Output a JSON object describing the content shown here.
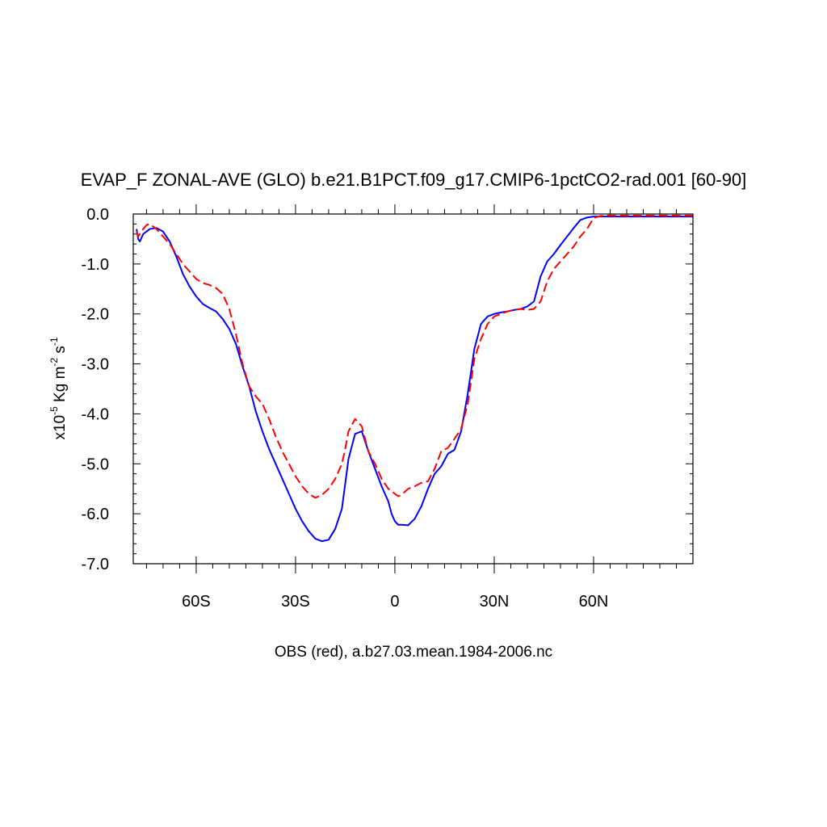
{
  "chart_data": {
    "type": "line",
    "title": "EVAP_F ZONAL-AVE (GLO) b.e21.B1PCT.f09_g17.CMIP6-1pctCO2-rad.001 [60-90]",
    "xlabel": "OBS (red), a.b27.03.mean.1984-2006.nc",
    "ylabel": {
      "prefix": "x10",
      "exp1": "-5",
      "unit": " Kg m",
      "exp2": "-2",
      "unit2": " s",
      "exp3": "-1"
    },
    "xlim": [
      -79,
      90
    ],
    "ylim": [
      -7.0,
      0.0
    ],
    "x_ticks": [
      {
        "value": -60,
        "label": "60S"
      },
      {
        "value": -30,
        "label": "30S"
      },
      {
        "value": 0,
        "label": "0"
      },
      {
        "value": 30,
        "label": "30N"
      },
      {
        "value": 60,
        "label": "60N"
      }
    ],
    "y_ticks": [
      {
        "value": 0.0,
        "label": "0.0"
      },
      {
        "value": -1.0,
        "label": "-1.0"
      },
      {
        "value": -2.0,
        "label": "-2.0"
      },
      {
        "value": -3.0,
        "label": "-3.0"
      },
      {
        "value": -4.0,
        "label": "-4.0"
      },
      {
        "value": -5.0,
        "label": "-5.0"
      },
      {
        "value": -6.0,
        "label": "-6.0"
      },
      {
        "value": -7.0,
        "label": "-7.0"
      }
    ],
    "grid": false,
    "series": [
      {
        "color": "#0000ff",
        "dash": "solid",
        "x": [
          -78,
          -77.5,
          -77,
          -76,
          -75,
          -74,
          -72,
          -70,
          -68,
          -66,
          -64,
          -62,
          -60,
          -58,
          -56,
          -54,
          -52,
          -50,
          -48,
          -46,
          -44,
          -42,
          -40,
          -38,
          -36,
          -34,
          -32,
          -30,
          -28,
          -26,
          -24,
          -22,
          -20,
          -18,
          -16,
          -15,
          -14,
          -12,
          -10,
          -8,
          -6,
          -4,
          -2,
          -1,
          0,
          1,
          2,
          4,
          6,
          8,
          10,
          12,
          14,
          16,
          18,
          20,
          22,
          24,
          26,
          28,
          30,
          32,
          34,
          36,
          38,
          40,
          42,
          44,
          46,
          48,
          50,
          52,
          54,
          56,
          58,
          60,
          62,
          64,
          66,
          68,
          70,
          72,
          74,
          76,
          78,
          80,
          82,
          84,
          86,
          88,
          90
        ],
        "y": [
          -0.3,
          -0.5,
          -0.55,
          -0.4,
          -0.35,
          -0.3,
          -0.28,
          -0.35,
          -0.55,
          -0.85,
          -1.2,
          -1.45,
          -1.65,
          -1.8,
          -1.88,
          -1.95,
          -2.1,
          -2.3,
          -2.6,
          -3.05,
          -3.45,
          -3.95,
          -4.35,
          -4.7,
          -5.0,
          -5.3,
          -5.6,
          -5.9,
          -6.15,
          -6.35,
          -6.5,
          -6.55,
          -6.52,
          -6.3,
          -5.9,
          -5.4,
          -4.9,
          -4.4,
          -4.35,
          -4.75,
          -5.1,
          -5.45,
          -5.75,
          -6.0,
          -6.15,
          -6.22,
          -6.22,
          -6.23,
          -6.1,
          -5.85,
          -5.5,
          -5.2,
          -5.05,
          -4.8,
          -4.72,
          -4.35,
          -3.6,
          -2.7,
          -2.2,
          -2.05,
          -2.0,
          -1.97,
          -1.95,
          -1.92,
          -1.9,
          -1.85,
          -1.75,
          -1.25,
          -0.95,
          -0.8,
          -0.62,
          -0.45,
          -0.28,
          -0.12,
          -0.07,
          -0.05,
          -0.05,
          -0.05,
          -0.05,
          -0.05,
          -0.05,
          -0.05,
          -0.05,
          -0.05,
          -0.05,
          -0.05,
          -0.05,
          -0.05,
          -0.05,
          -0.05,
          -0.05
        ]
      },
      {
        "color": "#ff0000",
        "dash": "dashed",
        "x": [
          -78,
          -77.5,
          -77,
          -76,
          -75,
          -74,
          -72,
          -70,
          -68,
          -66,
          -64,
          -62,
          -60,
          -58,
          -56,
          -54,
          -52,
          -50,
          -48,
          -46,
          -44,
          -42,
          -40,
          -38,
          -36,
          -34,
          -32,
          -30,
          -28,
          -26,
          -24,
          -22,
          -20,
          -18,
          -16,
          -15,
          -14,
          -12,
          -10,
          -8,
          -6,
          -4,
          -2,
          -1,
          0,
          1,
          2,
          4,
          6,
          8,
          10,
          12,
          14,
          16,
          18,
          20,
          22,
          24,
          26,
          28,
          30,
          32,
          34,
          36,
          38,
          40,
          42,
          44,
          46,
          48,
          50,
          52,
          54,
          56,
          58,
          60,
          62,
          64,
          66,
          68,
          70,
          72,
          74,
          76,
          78,
          80,
          82,
          84,
          86,
          88,
          90
        ],
        "y": [
          -0.35,
          -0.45,
          -0.4,
          -0.3,
          -0.22,
          -0.2,
          -0.3,
          -0.45,
          -0.6,
          -0.8,
          -1.0,
          -1.15,
          -1.3,
          -1.38,
          -1.42,
          -1.48,
          -1.6,
          -1.9,
          -2.4,
          -3.0,
          -3.45,
          -3.65,
          -3.8,
          -4.1,
          -4.45,
          -4.75,
          -5.0,
          -5.25,
          -5.45,
          -5.6,
          -5.68,
          -5.62,
          -5.5,
          -5.3,
          -5.0,
          -4.7,
          -4.35,
          -4.1,
          -4.25,
          -4.75,
          -5.0,
          -5.3,
          -5.5,
          -5.55,
          -5.6,
          -5.65,
          -5.62,
          -5.5,
          -5.45,
          -5.38,
          -5.35,
          -5.1,
          -4.75,
          -4.68,
          -4.5,
          -4.3,
          -3.8,
          -2.9,
          -2.5,
          -2.2,
          -2.05,
          -2.0,
          -1.95,
          -1.92,
          -1.9,
          -1.92,
          -1.9,
          -1.75,
          -1.35,
          -1.1,
          -0.95,
          -0.8,
          -0.65,
          -0.45,
          -0.3,
          -0.08,
          -0.04,
          -0.03,
          -0.03,
          -0.03,
          -0.03,
          -0.03,
          -0.03,
          -0.03,
          -0.03,
          -0.03,
          -0.03,
          -0.03,
          -0.03,
          -0.03,
          -0.03
        ]
      }
    ]
  }
}
